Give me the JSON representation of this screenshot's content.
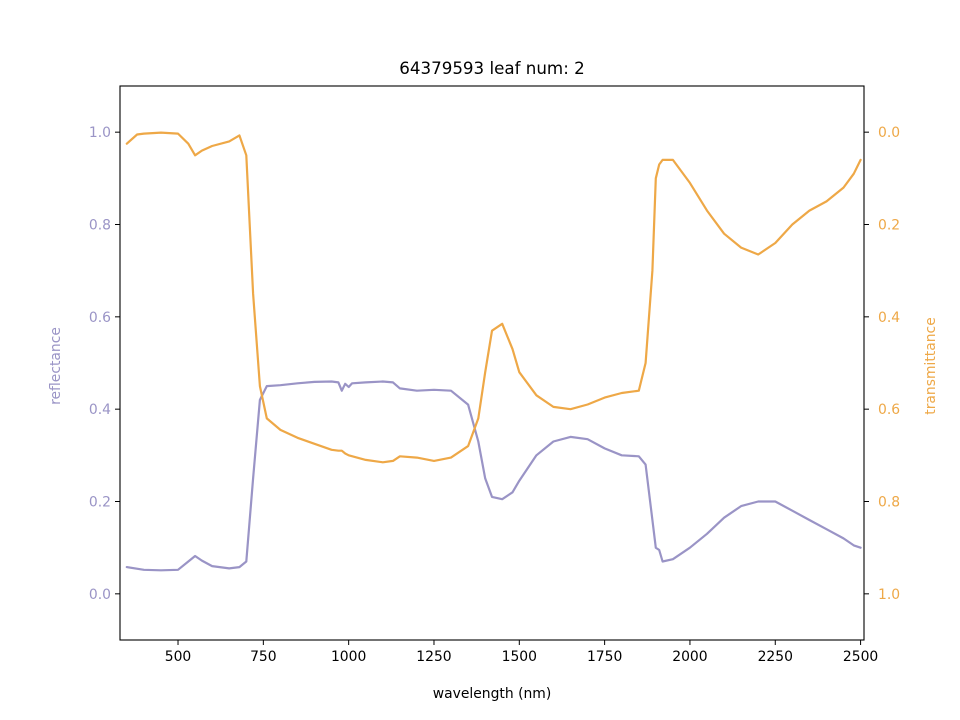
{
  "chart_data": {
    "type": "line",
    "title": "64379593 leaf num: 2",
    "xlabel": "wavelength (nm)",
    "ylabel_left": "reflectance",
    "ylabel_right": "transmittance",
    "xlim": [
      330,
      2510
    ],
    "ylim_left": [
      -0.1,
      1.1
    ],
    "ylim_right": [
      1.1,
      -0.1
    ],
    "right_axis_inverted": true,
    "grid": false,
    "x_ticks": [
      "500",
      "750",
      "1000",
      "1250",
      "1500",
      "1750",
      "2000",
      "2250",
      "2500"
    ],
    "y_left_ticks": [
      "0.0",
      "0.2",
      "0.4",
      "0.6",
      "0.8",
      "1.0"
    ],
    "y_right_ticks": [
      "0.0",
      "0.2",
      "0.4",
      "0.6",
      "0.8",
      "1.0"
    ],
    "colors": {
      "reflectance": "#9a94c6",
      "transmittance": "#eea847",
      "axes": "#000000"
    },
    "series": [
      {
        "name": "reflectance",
        "axis": "left",
        "x": [
          350,
          400,
          450,
          500,
          530,
          550,
          570,
          600,
          650,
          680,
          700,
          720,
          740,
          760,
          800,
          850,
          900,
          950,
          970,
          980,
          990,
          1000,
          1010,
          1050,
          1100,
          1130,
          1150,
          1200,
          1250,
          1300,
          1350,
          1380,
          1400,
          1420,
          1450,
          1480,
          1500,
          1550,
          1600,
          1650,
          1700,
          1750,
          1800,
          1850,
          1870,
          1890,
          1900,
          1910,
          1920,
          1950,
          2000,
          2050,
          2100,
          2150,
          2200,
          2250,
          2300,
          2350,
          2400,
          2450,
          2480,
          2500
        ],
        "values": [
          0.058,
          0.052,
          0.051,
          0.052,
          0.07,
          0.082,
          0.072,
          0.06,
          0.055,
          0.058,
          0.07,
          0.25,
          0.42,
          0.45,
          0.452,
          0.456,
          0.459,
          0.46,
          0.458,
          0.44,
          0.455,
          0.448,
          0.456,
          0.458,
          0.46,
          0.458,
          0.445,
          0.44,
          0.442,
          0.44,
          0.41,
          0.33,
          0.25,
          0.21,
          0.205,
          0.22,
          0.245,
          0.3,
          0.33,
          0.34,
          0.335,
          0.315,
          0.3,
          0.298,
          0.28,
          0.16,
          0.1,
          0.095,
          0.07,
          0.075,
          0.1,
          0.13,
          0.165,
          0.19,
          0.2,
          0.2,
          0.18,
          0.16,
          0.14,
          0.12,
          0.105,
          0.1
        ]
      },
      {
        "name": "transmittance",
        "axis": "right",
        "x": [
          350,
          380,
          400,
          450,
          500,
          530,
          550,
          570,
          600,
          650,
          680,
          700,
          720,
          740,
          760,
          800,
          850,
          900,
          950,
          970,
          980,
          990,
          1000,
          1050,
          1100,
          1130,
          1150,
          1200,
          1250,
          1300,
          1350,
          1380,
          1400,
          1420,
          1450,
          1480,
          1500,
          1550,
          1600,
          1650,
          1700,
          1750,
          1800,
          1850,
          1870,
          1890,
          1900,
          1910,
          1920,
          1950,
          2000,
          2050,
          2100,
          2150,
          2200,
          2250,
          2300,
          2350,
          2400,
          2450,
          2480,
          2500
        ],
        "values": [
          0.025,
          0.005,
          0.003,
          0.001,
          0.003,
          0.025,
          0.05,
          0.04,
          0.03,
          0.02,
          0.007,
          0.05,
          0.35,
          0.55,
          0.62,
          0.645,
          0.662,
          0.675,
          0.688,
          0.69,
          0.69,
          0.696,
          0.7,
          0.71,
          0.715,
          0.712,
          0.702,
          0.705,
          0.712,
          0.705,
          0.68,
          0.62,
          0.52,
          0.43,
          0.415,
          0.47,
          0.52,
          0.57,
          0.595,
          0.6,
          0.59,
          0.575,
          0.565,
          0.56,
          0.5,
          0.3,
          0.1,
          0.07,
          0.06,
          0.06,
          0.11,
          0.17,
          0.22,
          0.25,
          0.265,
          0.24,
          0.2,
          0.17,
          0.15,
          0.12,
          0.09,
          0.06
        ]
      }
    ]
  }
}
